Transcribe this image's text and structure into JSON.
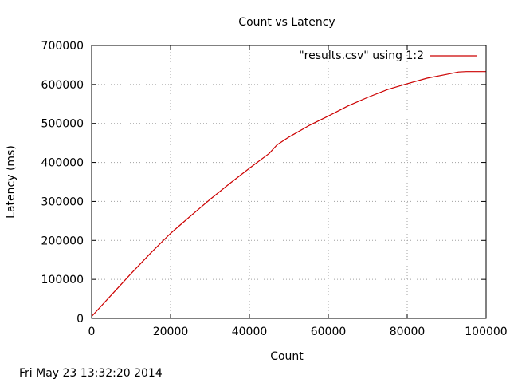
{
  "chart_data": {
    "type": "line",
    "title": "Count vs Latency",
    "xlabel": "Count",
    "ylabel": "Latency (ms)",
    "xlim": [
      0,
      100000
    ],
    "ylim": [
      0,
      700000
    ],
    "x_ticks": [
      0,
      20000,
      40000,
      60000,
      80000,
      100000
    ],
    "y_ticks": [
      0,
      100000,
      200000,
      300000,
      400000,
      500000,
      600000,
      700000
    ],
    "grid": true,
    "legend_position": "top-right",
    "series": [
      {
        "name": "\"results.csv\" using 1:2",
        "color": "#cc0000",
        "x": [
          0,
          5000,
          10000,
          15000,
          20000,
          25000,
          30000,
          35000,
          40000,
          45000,
          47000,
          50000,
          55000,
          60000,
          65000,
          70000,
          75000,
          80000,
          85000,
          90000,
          93000,
          95000,
          100000
        ],
        "y": [
          5000,
          60000,
          115000,
          168000,
          218000,
          262000,
          305000,
          346000,
          385000,
          423000,
          445000,
          465000,
          494000,
          519000,
          545000,
          567000,
          587000,
          602000,
          616000,
          626000,
          632000,
          633000,
          633000
        ]
      }
    ]
  },
  "footer": {
    "timestamp": "Fri May 23 13:32:20 2014"
  }
}
